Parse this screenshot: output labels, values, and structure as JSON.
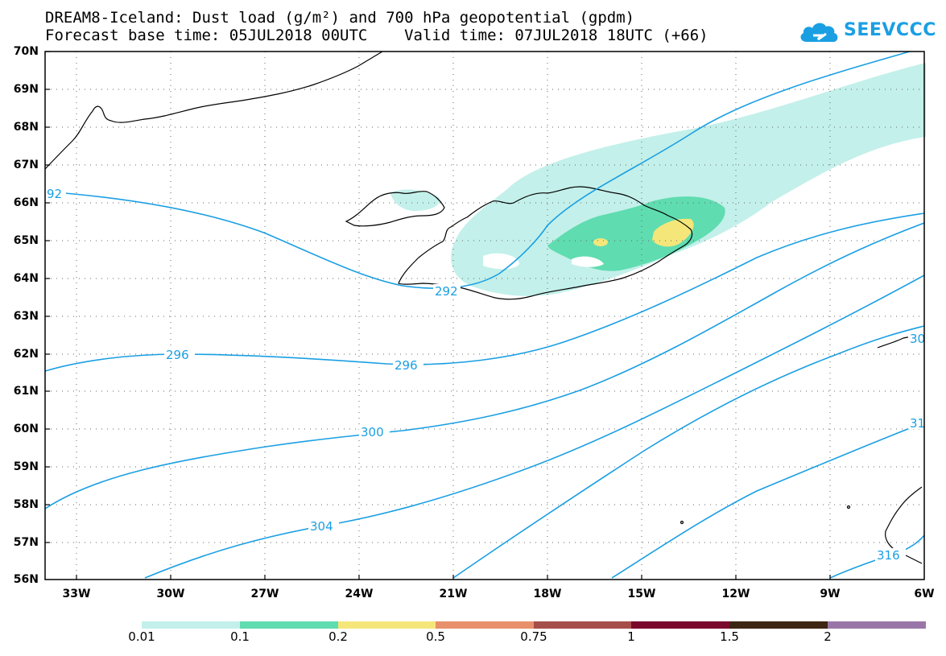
{
  "title": {
    "line1": "DREAM8-Iceland: Dust load (g/m²) and 700 hPa geopotential (gpdm)",
    "line2": "Forecast base time: 05JUL2018 00UTC    Valid time: 07JUL2018 18UTC (+66)"
  },
  "logo": {
    "text": "SEEVCCC",
    "icon": "cloud-icon",
    "color": "#1a9fe3"
  },
  "map": {
    "lat_labels": [
      "70N",
      "69N",
      "68N",
      "67N",
      "66N",
      "65N",
      "64N",
      "63N",
      "62N",
      "61N",
      "60N",
      "59N",
      "58N",
      "57N",
      "56N"
    ],
    "lon_labels": [
      "33W",
      "30W",
      "27W",
      "24W",
      "21W",
      "18W",
      "15W",
      "12W",
      "9W",
      "6W"
    ],
    "grid": "dotted",
    "contour_color": "#1a9fe3",
    "contour_labels": [
      "92",
      "292",
      "296",
      "296",
      "300",
      "304",
      "30",
      "31",
      "316"
    ]
  },
  "colorbar": {
    "labels": [
      "0.01",
      "0.1",
      "0.2",
      "0.5",
      "0.75",
      "1",
      "1.5",
      "2"
    ],
    "colors": [
      "#c3f0ea",
      "#5fdcb0",
      "#f5e67a",
      "#e8906c",
      "#a64f4a",
      "#7a0a2c",
      "#3d2612",
      "#9a76a8"
    ]
  }
}
